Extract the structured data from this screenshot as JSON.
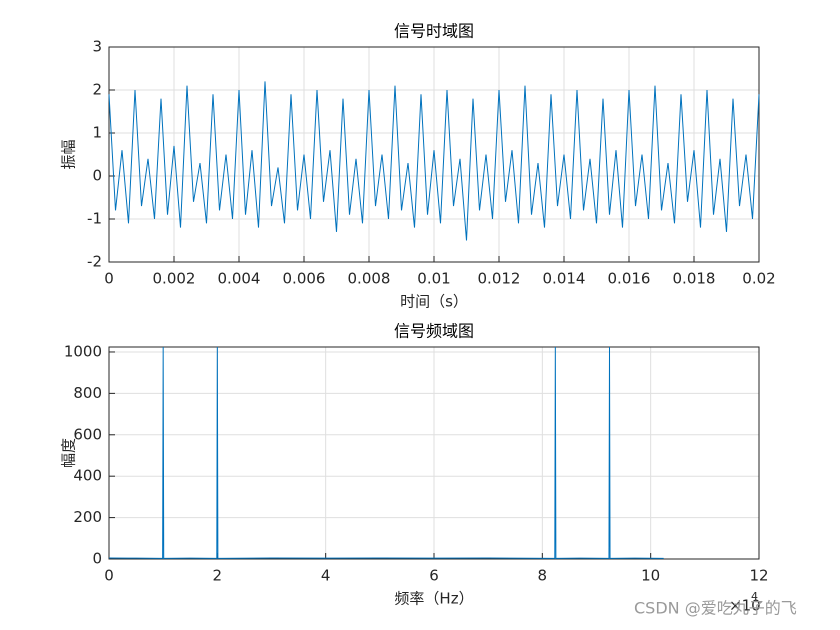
{
  "chart_data": [
    {
      "type": "line",
      "title": "信号时域图",
      "x_label": "时间（s）",
      "y_label": "振幅",
      "x": [
        0,
        0.0002,
        0.0004,
        0.0006,
        0.0008,
        0.001,
        0.0012,
        0.0014,
        0.0016,
        0.0018,
        0.002,
        0.0022,
        0.0024,
        0.0026,
        0.0028,
        0.003,
        0.0032,
        0.0034,
        0.0036,
        0.0038,
        0.004,
        0.0042,
        0.0044,
        0.0046,
        0.0048,
        0.005,
        0.0052,
        0.0054,
        0.0056,
        0.0058,
        0.006,
        0.0062,
        0.0064,
        0.0066,
        0.0068,
        0.007,
        0.0072,
        0.0074,
        0.0076,
        0.0078,
        0.008,
        0.0082,
        0.0084,
        0.0086,
        0.0088,
        0.009,
        0.0092,
        0.0094,
        0.0096,
        0.0098,
        0.01,
        0.0102,
        0.0104,
        0.0106,
        0.0108,
        0.011,
        0.0112,
        0.0114,
        0.0116,
        0.0118,
        0.012,
        0.0122,
        0.0124,
        0.0126,
        0.0128,
        0.013,
        0.0132,
        0.0134,
        0.0136,
        0.0138,
        0.014,
        0.0142,
        0.0144,
        0.0146,
        0.0148,
        0.015,
        0.0152,
        0.0154,
        0.0156,
        0.0158,
        0.016,
        0.0162,
        0.0164,
        0.0166,
        0.0168,
        0.017,
        0.0172,
        0.0174,
        0.0176,
        0.0178,
        0.018,
        0.0182,
        0.0184,
        0.0186,
        0.0188,
        0.019,
        0.0192,
        0.0194,
        0.0196,
        0.0198,
        0.02
      ],
      "series": [
        {
          "color": "#0072bd",
          "values": [
            1.9,
            -0.8,
            0.6,
            -1.1,
            2.0,
            -0.7,
            0.4,
            -1.0,
            1.8,
            -0.9,
            0.7,
            -1.2,
            2.1,
            -0.6,
            0.3,
            -1.1,
            1.9,
            -0.8,
            0.5,
            -1.0,
            2.0,
            -0.9,
            0.6,
            -1.2,
            2.2,
            -0.7,
            0.2,
            -1.1,
            1.9,
            -0.8,
            0.5,
            -1.0,
            2.0,
            -0.6,
            0.6,
            -1.3,
            1.8,
            -0.9,
            0.4,
            -1.1,
            2.0,
            -0.7,
            0.5,
            -1.0,
            2.1,
            -0.8,
            0.3,
            -1.2,
            1.9,
            -0.9,
            0.6,
            -1.1,
            2.0,
            -0.7,
            0.4,
            -1.5,
            1.8,
            -0.8,
            0.5,
            -1.0,
            2.0,
            -0.6,
            0.6,
            -1.1,
            2.1,
            -0.9,
            0.3,
            -1.2,
            1.9,
            -0.7,
            0.5,
            -1.0,
            2.0,
            -0.8,
            0.4,
            -1.1,
            1.8,
            -0.9,
            0.6,
            -1.2,
            2.0,
            -0.7,
            0.5,
            -1.0,
            2.1,
            -0.8,
            0.3,
            -1.1,
            1.9,
            -0.6,
            0.6,
            -1.2,
            2.0,
            -0.9,
            0.4,
            -1.3,
            1.8,
            -0.7,
            0.5,
            -1.0,
            1.9
          ]
        }
      ],
      "xlim": [
        0,
        0.02
      ],
      "xticks": [
        0,
        0.002,
        0.004,
        0.006,
        0.008,
        0.01,
        0.012,
        0.014,
        0.016,
        0.018,
        0.02
      ],
      "ylim": [
        -2,
        3
      ],
      "yticks": [
        -2,
        -1,
        0,
        1,
        2,
        3
      ],
      "grid": true
    },
    {
      "type": "line",
      "title": "信号频域图",
      "x_label": "频率（Hz）",
      "y_label": "幅度",
      "x": [
        0,
        5000,
        9900,
        10000,
        10100,
        15000,
        19900,
        20000,
        20100,
        30000,
        40000,
        50000,
        60000,
        70000,
        82300,
        82400,
        82500,
        87000,
        92300,
        92400,
        92500,
        97000,
        102400
      ],
      "series": [
        {
          "color": "#0072bd",
          "values": [
            5,
            4,
            3,
            1024,
            3,
            4,
            3,
            1024,
            3,
            5,
            4,
            5,
            4,
            5,
            3,
            1024,
            3,
            4,
            3,
            1024,
            3,
            4,
            3
          ]
        }
      ],
      "xlim": [
        0,
        120000
      ],
      "xticks": [
        {
          "value": 0,
          "label": "0"
        },
        {
          "value": 20000,
          "label": "2"
        },
        {
          "value": 40000,
          "label": "4"
        },
        {
          "value": 60000,
          "label": "6"
        },
        {
          "value": 80000,
          "label": "8"
        },
        {
          "value": 100000,
          "label": "10"
        },
        {
          "value": 120000,
          "label": "12"
        }
      ],
      "x_multiplier": "×10",
      "x_multiplier_exponent": "4",
      "ylim": [
        0,
        1024
      ],
      "yticks": [
        0,
        200,
        400,
        600,
        800,
        1000
      ],
      "grid": true
    }
  ],
  "watermark": "CSDN @爱吃丸子的飞"
}
